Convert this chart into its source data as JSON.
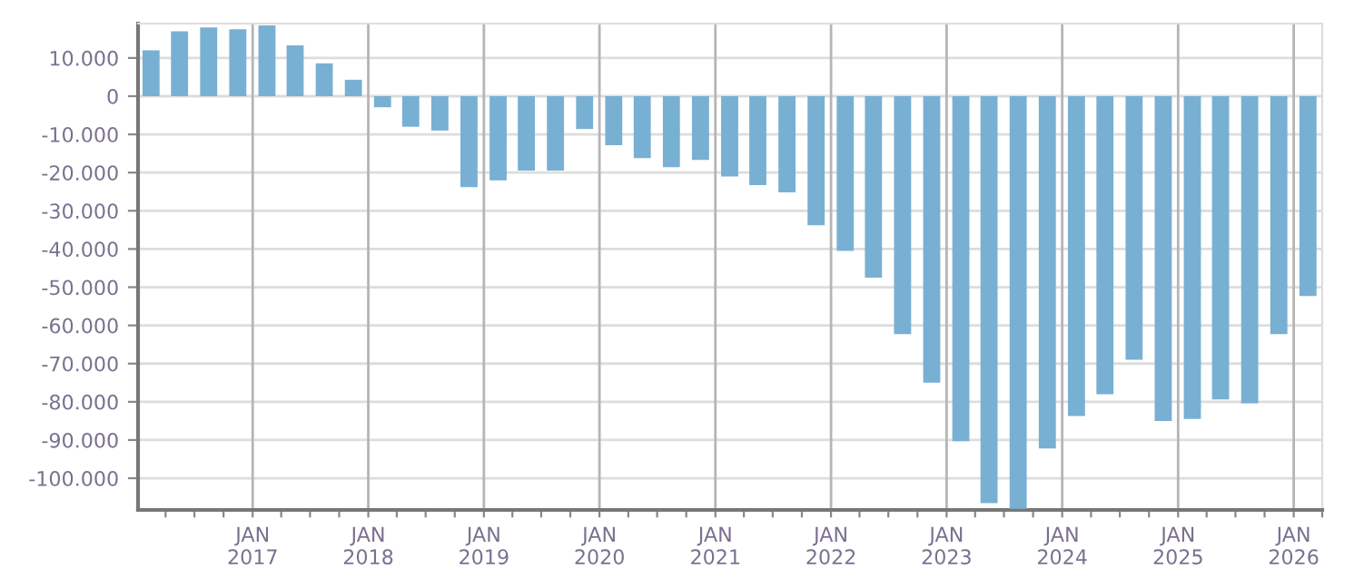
{
  "chart_data": {
    "type": "bar",
    "color": "#78b0d3",
    "grid": true,
    "x": [
      "2016-02-15",
      "2016-05-15",
      "2016-08-15",
      "2016-11-15",
      "2017-02-15",
      "2017-05-15",
      "2017-08-15",
      "2017-11-15",
      "2018-02-15",
      "2018-05-15",
      "2018-08-15",
      "2018-11-15",
      "2019-02-15",
      "2019-05-15",
      "2019-08-15",
      "2019-11-15",
      "2020-02-15",
      "2020-05-15",
      "2020-08-15",
      "2020-11-15",
      "2021-02-15",
      "2021-05-15",
      "2021-08-15",
      "2021-11-15",
      "2022-02-15",
      "2022-05-15",
      "2022-08-15",
      "2022-11-15",
      "2023-02-15",
      "2023-05-15",
      "2023-08-15",
      "2023-11-15",
      "2024-02-15",
      "2024-05-15",
      "2024-08-15",
      "2024-11-15",
      "2025-02-15",
      "2025-05-15",
      "2025-08-15",
      "2025-11-15",
      "2026-02-15"
    ],
    "values": [
      12000,
      17000,
      18000,
      17500,
      18500,
      13300,
      8600,
      4300,
      -2900,
      -8000,
      -9000,
      -23800,
      -22000,
      -19500,
      -19500,
      -8600,
      -12800,
      -16200,
      -18600,
      -16700,
      -21000,
      -23300,
      -25200,
      -33800,
      -40500,
      -47500,
      -62300,
      -75000,
      -90300,
      -106500,
      -108000,
      -92200,
      -83700,
      -78000,
      -69000,
      -85000,
      -84500,
      -79400,
      -80400,
      -62300,
      -52300
    ],
    "xlim": [
      "2016-01-05",
      "2026-04-01"
    ],
    "xticks": [
      {
        "value": "2016-04-01",
        "label": null
      },
      {
        "value": "2016-07-01",
        "label": null
      },
      {
        "value": "2016-10-01",
        "label": null
      },
      {
        "value": "2017-01-01",
        "label": "JAN\n2017"
      },
      {
        "value": "2017-04-01",
        "label": null
      },
      {
        "value": "2017-07-01",
        "label": null
      },
      {
        "value": "2017-10-01",
        "label": null
      },
      {
        "value": "2018-01-01",
        "label": "JAN\n2018"
      },
      {
        "value": "2018-04-01",
        "label": null
      },
      {
        "value": "2018-07-01",
        "label": null
      },
      {
        "value": "2018-10-01",
        "label": null
      },
      {
        "value": "2019-01-01",
        "label": "JAN\n2019"
      },
      {
        "value": "2019-04-01",
        "label": null
      },
      {
        "value": "2019-07-01",
        "label": null
      },
      {
        "value": "2019-10-01",
        "label": null
      },
      {
        "value": "2020-01-01",
        "label": "JAN\n2020"
      },
      {
        "value": "2020-04-01",
        "label": null
      },
      {
        "value": "2020-07-01",
        "label": null
      },
      {
        "value": "2020-10-01",
        "label": null
      },
      {
        "value": "2021-01-01",
        "label": "JAN\n2021"
      },
      {
        "value": "2021-04-01",
        "label": null
      },
      {
        "value": "2021-07-01",
        "label": null
      },
      {
        "value": "2021-10-01",
        "label": null
      },
      {
        "value": "2022-01-01",
        "label": "JAN\n2022"
      },
      {
        "value": "2022-04-01",
        "label": null
      },
      {
        "value": "2022-07-01",
        "label": null
      },
      {
        "value": "2022-10-01",
        "label": null
      },
      {
        "value": "2023-01-01",
        "label": "JAN\n2023"
      },
      {
        "value": "2023-04-01",
        "label": null
      },
      {
        "value": "2023-07-01",
        "label": null
      },
      {
        "value": "2023-10-01",
        "label": null
      },
      {
        "value": "2024-01-01",
        "label": "JAN\n2024"
      },
      {
        "value": "2024-04-01",
        "label": null
      },
      {
        "value": "2024-07-01",
        "label": null
      },
      {
        "value": "2024-10-01",
        "label": null
      },
      {
        "value": "2025-01-01",
        "label": "JAN\n2025"
      },
      {
        "value": "2025-04-01",
        "label": null
      },
      {
        "value": "2025-07-01",
        "label": null
      },
      {
        "value": "2025-10-01",
        "label": null
      },
      {
        "value": "2026-01-01",
        "label": "JAN\n2026"
      },
      {
        "value": "2026-04-01",
        "label": null
      }
    ],
    "ylim": [
      -108300,
      19000
    ],
    "yticks": [
      {
        "value": 10000,
        "label": "10.000"
      },
      0,
      {
        "value": -10000,
        "label": "-10.000"
      },
      {
        "value": -20000,
        "label": "-20.000"
      },
      {
        "value": -30000,
        "label": "-30.000"
      },
      {
        "value": -40000,
        "label": "-40.000"
      },
      {
        "value": -50000,
        "label": "-50.000"
      },
      {
        "value": -60000,
        "label": "-60.000"
      },
      {
        "value": -70000,
        "label": "-70.000"
      },
      {
        "value": -80000,
        "label": "-80.000"
      },
      {
        "value": -90000,
        "label": "-90.000"
      },
      {
        "value": -100000,
        "label": "-100.000"
      }
    ]
  }
}
